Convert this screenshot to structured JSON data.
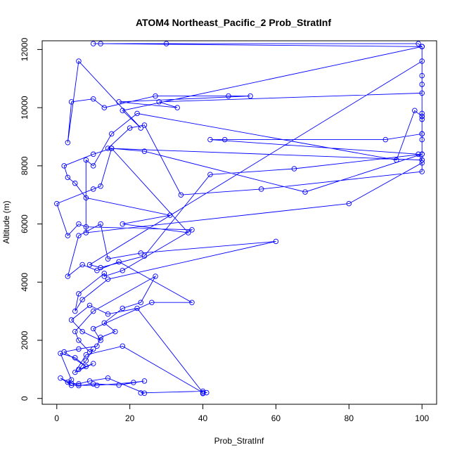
{
  "chart_data": {
    "type": "line",
    "title": "ATOM4 Northeast_Pacific_2 Prob_StratInf",
    "xlabel": "Prob_StratInf",
    "ylabel": "Altitude (m)",
    "xlim": [
      -4,
      104
    ],
    "ylim": [
      -200,
      12300
    ],
    "xticks": [
      0,
      20,
      40,
      60,
      80,
      100
    ],
    "yticks": [
      0,
      2000,
      4000,
      6000,
      8000,
      10000,
      12000
    ],
    "grid": false,
    "legend": "none",
    "color": "#0000ff",
    "series": [
      {
        "x": [
          40,
          41,
          40,
          23,
          24,
          14,
          9,
          6,
          4,
          1,
          4,
          11,
          21,
          24,
          17,
          10,
          6,
          3,
          4,
          1,
          5,
          8,
          2,
          6,
          11,
          12,
          16,
          13,
          18,
          23,
          27,
          10,
          5,
          6,
          9,
          10,
          8,
          6,
          10,
          5,
          8,
          18,
          40,
          22,
          14,
          9,
          4,
          7,
          12,
          10,
          26,
          37,
          17,
          11,
          7,
          3,
          6,
          12,
          14,
          23,
          60,
          14,
          7,
          5,
          6,
          13,
          13,
          18,
          37,
          8,
          6,
          3,
          0,
          10,
          12,
          15,
          36,
          18,
          31,
          8,
          5,
          3,
          2,
          10,
          15,
          24,
          68,
          100,
          100,
          14,
          20,
          24,
          34,
          56,
          100,
          100,
          80,
          8,
          8,
          10,
          15,
          22,
          93,
          98,
          100,
          100,
          100,
          100,
          100,
          99,
          42,
          46,
          90,
          100,
          100,
          100,
          9,
          12,
          24,
          42,
          65,
          100,
          100,
          100,
          18,
          23,
          6,
          3,
          4,
          10,
          13,
          27,
          47,
          53,
          17,
          33,
          28,
          100,
          100,
          100,
          100,
          12,
          10,
          30,
          99,
          100,
          100
        ],
        "y": [
          170,
          200,
          250,
          190,
          180,
          700,
          600,
          500,
          520,
          700,
          450,
          450,
          550,
          600,
          460,
          500,
          440,
          560,
          640,
          1550,
          1400,
          1100,
          1600,
          1700,
          1800,
          2100,
          2300,
          2600,
          3100,
          3300,
          4200,
          3000,
          2300,
          2000,
          1600,
          1700,
          1300,
          1000,
          1200,
          900,
          1500,
          1800,
          200,
          3100,
          2900,
          3200,
          2700,
          2300,
          2000,
          2400,
          3300,
          3300,
          4700,
          4400,
          4600,
          4200,
          5600,
          6000,
          4800,
          5000,
          5400,
          4100,
          3400,
          3000,
          3600,
          4300,
          4200,
          4400,
          5800,
          5900,
          6000,
          5600,
          6700,
          7200,
          7300,
          8600,
          5700,
          6000,
          6300,
          6900,
          7400,
          7600,
          8000,
          8400,
          8600,
          8500,
          7100,
          8400,
          8200,
          8600,
          9300,
          9400,
          7000,
          7200,
          7800,
          8100,
          6700,
          5700,
          8200,
          8000,
          9100,
          9800,
          8200,
          9900,
          9700,
          9800,
          9100,
          8900,
          8200,
          8400,
          8900,
          8900,
          8900,
          9100,
          10800,
          11600,
          4600,
          4500,
          4900,
          7700,
          7900,
          8400,
          11100,
          12100,
          9900,
          9300,
          11600,
          8800,
          10200,
          10300,
          10000,
          10400,
          10400,
          10400,
          10200,
          10000,
          10200,
          10500,
          9600,
          9700,
          12100,
          12200,
          12200,
          12200,
          12200,
          12100,
          12100
        ]
      }
    ]
  }
}
